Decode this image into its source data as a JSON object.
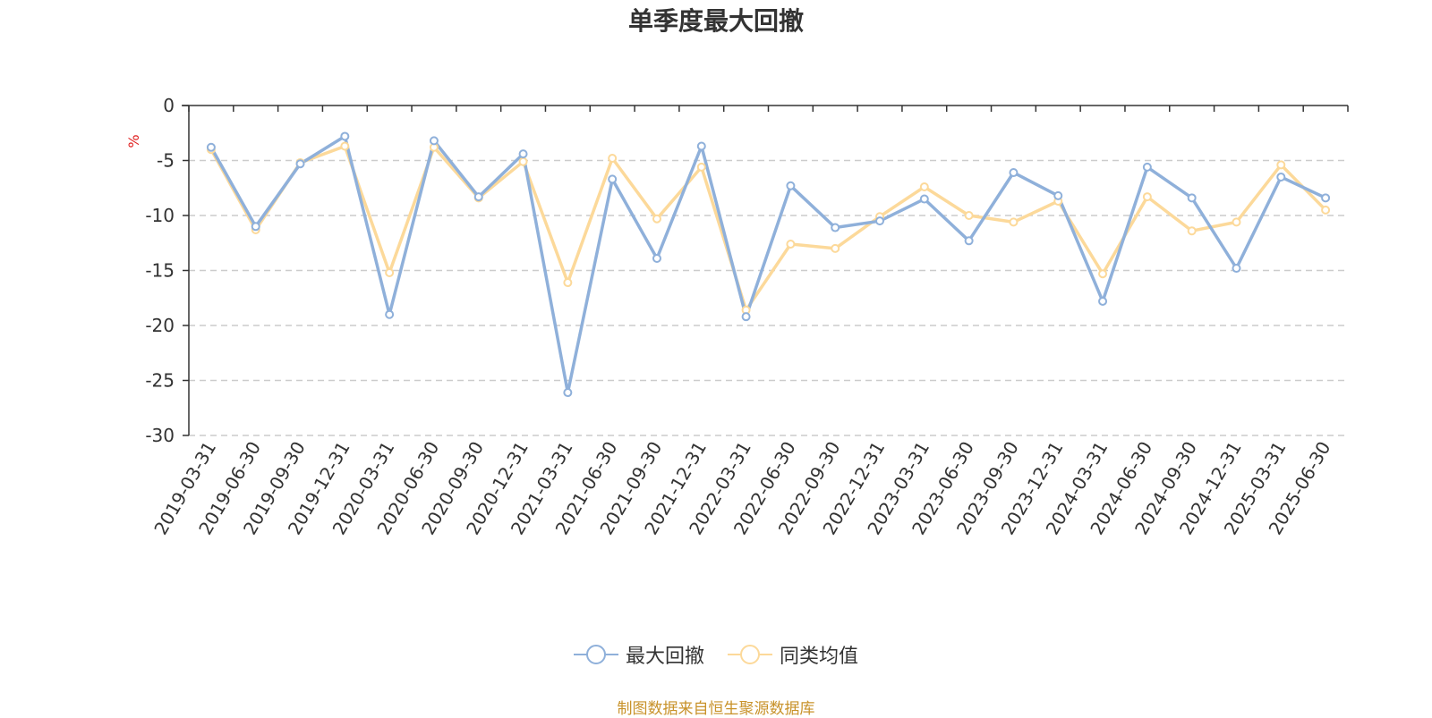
{
  "chart_data": {
    "type": "line",
    "title": "单季度最大回撤",
    "ylabel": "%",
    "xlabel": "",
    "ylim": [
      -30,
      0
    ],
    "yticks": [
      0,
      -5,
      -10,
      -15,
      -20,
      -25,
      -30
    ],
    "grid": true,
    "legend_position": "bottom-center",
    "categories": [
      "2019-03-31",
      "2019-06-30",
      "2019-09-30",
      "2019-12-31",
      "2020-03-31",
      "2020-06-30",
      "2020-09-30",
      "2020-12-31",
      "2021-03-31",
      "2021-06-30",
      "2021-09-30",
      "2021-12-31",
      "2022-03-31",
      "2022-06-30",
      "2022-09-30",
      "2022-12-31",
      "2023-03-31",
      "2023-06-30",
      "2023-09-30",
      "2023-12-31",
      "2024-03-31",
      "2024-06-30",
      "2024-09-30",
      "2024-12-31",
      "2025-03-31",
      "2025-06-30"
    ],
    "series": [
      {
        "name": "最大回撤",
        "color": "#8fb0da",
        "values": [
          -3.8,
          -11.0,
          -5.3,
          -2.8,
          -19.0,
          -3.2,
          -8.3,
          -4.4,
          -26.1,
          -6.7,
          -13.9,
          -3.7,
          -19.2,
          -7.3,
          -11.1,
          -10.5,
          -8.5,
          -12.3,
          -6.1,
          -8.2,
          -17.8,
          -5.6,
          -8.4,
          -14.8,
          -6.5,
          -8.4
        ]
      },
      {
        "name": "同类均值",
        "color": "#fcd99a",
        "values": [
          -4.0,
          -11.3,
          -5.2,
          -3.7,
          -15.2,
          -3.8,
          -8.4,
          -5.1,
          -16.1,
          -4.8,
          -10.3,
          -5.6,
          -18.6,
          -12.6,
          -13.0,
          -10.1,
          -7.4,
          -10.0,
          -10.6,
          -8.7,
          -15.3,
          -8.3,
          -11.4,
          -10.6,
          -5.4,
          -9.5
        ]
      }
    ]
  },
  "source_text": "制图数据来自恒生聚源数据库"
}
